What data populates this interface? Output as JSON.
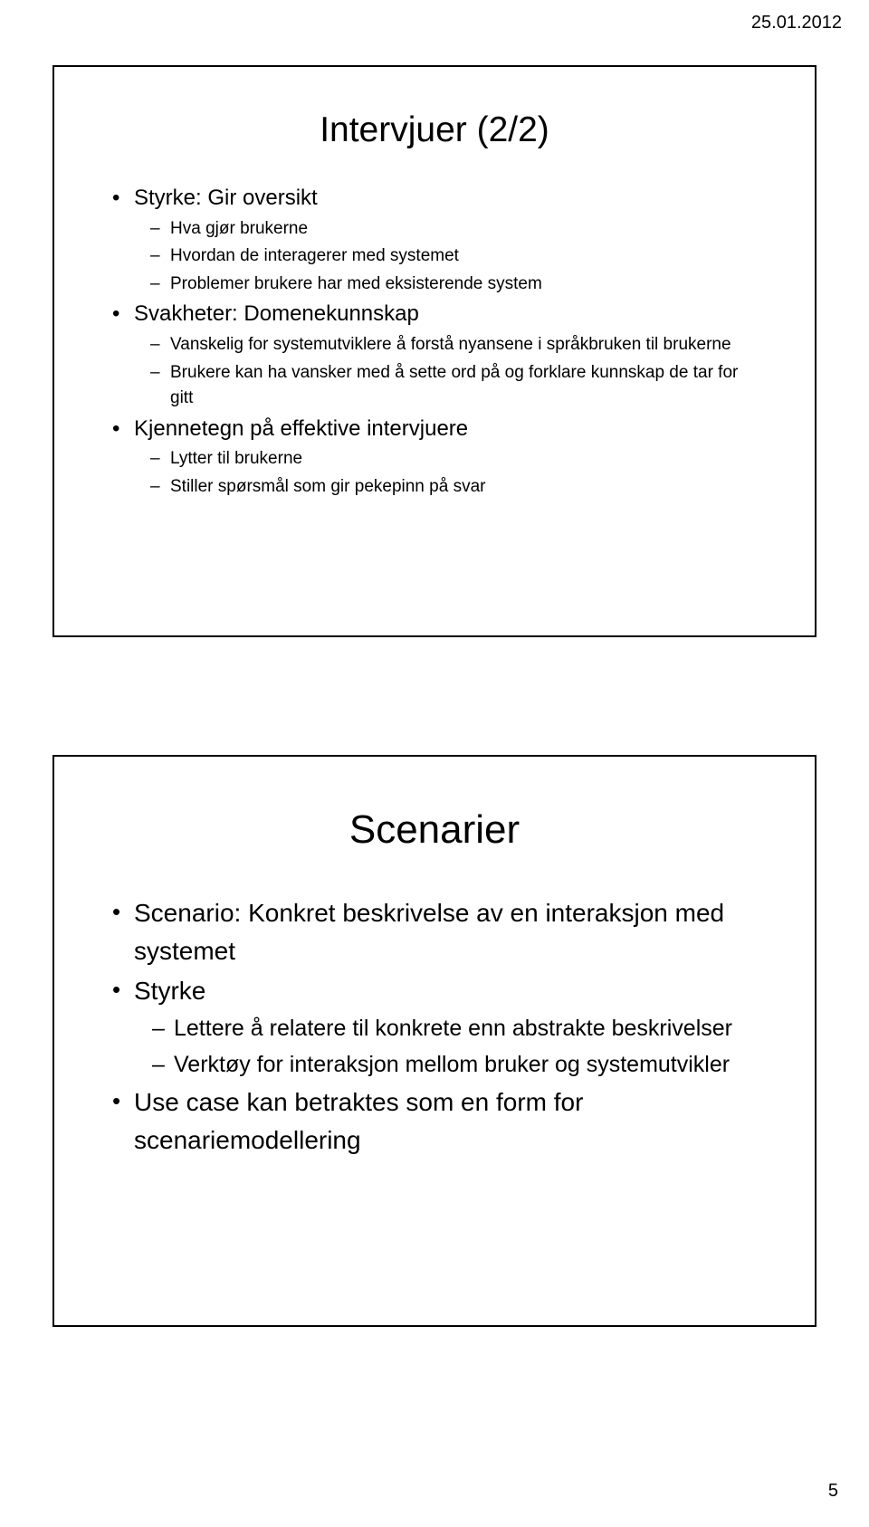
{
  "page": {
    "date": "25.01.2012",
    "number": "5"
  },
  "slide1": {
    "title": "Intervjuer (2/2)",
    "items": {
      "i0": {
        "label": "Styrke: Gir oversikt",
        "sub": {
          "s0": "Hva gjør brukerne",
          "s1": "Hvordan de interagerer med systemet",
          "s2": "Problemer brukere har med eksisterende system"
        }
      },
      "i1": {
        "label": "Svakheter: Domenekunnskap",
        "sub": {
          "s0": "Vanskelig for systemutviklere å forstå nyansene i språkbruken til brukerne",
          "s1": "Brukere kan ha vansker med å sette ord på og forklare kunnskap de tar for gitt"
        }
      },
      "i2": {
        "label": "Kjennetegn på effektive intervjuere",
        "sub": {
          "s0": "Lytter til brukerne",
          "s1": "Stiller spørsmål som gir pekepinn på svar"
        }
      }
    }
  },
  "slide2": {
    "title": "Scenarier",
    "items": {
      "i0": {
        "label": "Scenario: Konkret beskrivelse av en interaksjon med systemet"
      },
      "i1": {
        "label": "Styrke",
        "sub": {
          "s0": "Lettere å relatere til konkrete enn abstrakte beskrivelser",
          "s1": "Verktøy for interaksjon mellom bruker og systemutvikler"
        }
      },
      "i2": {
        "label": "Use case kan betraktes som en form for scenariemodellering"
      }
    }
  }
}
